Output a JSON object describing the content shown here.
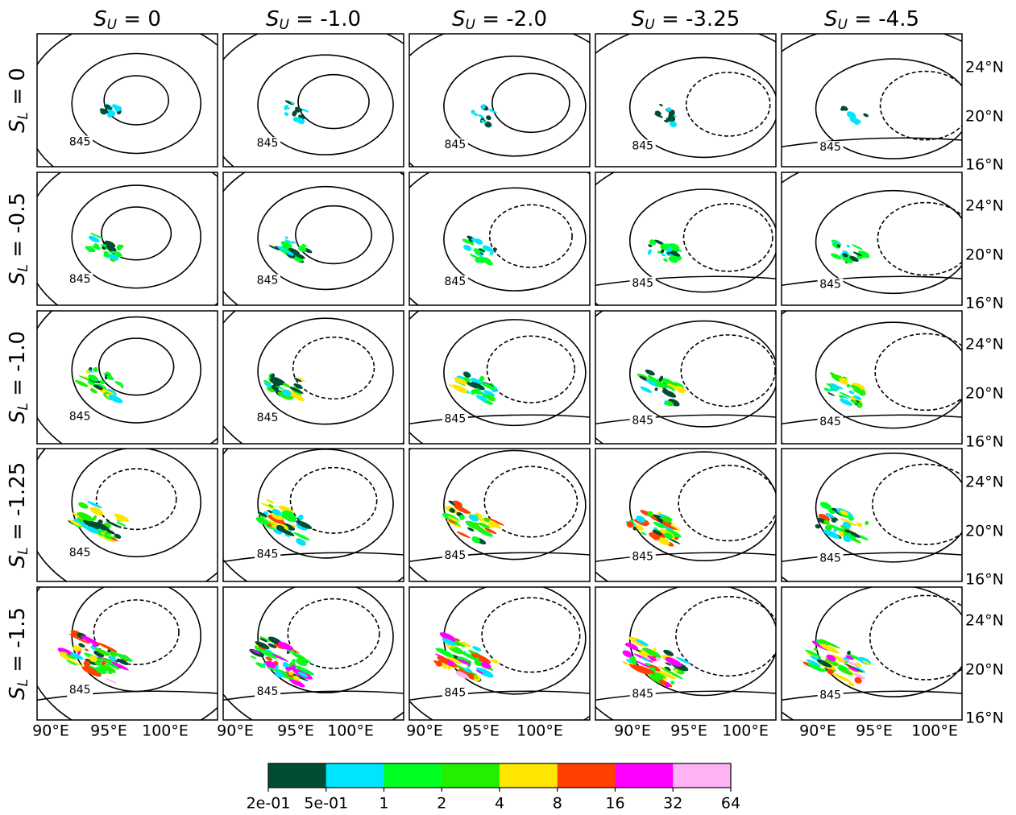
{
  "columns": [
    {
      "var": "S",
      "sub": "U",
      "text": " = 0"
    },
    {
      "var": "S",
      "sub": "U",
      "text": " = -1.0"
    },
    {
      "var": "S",
      "sub": "U",
      "text": " = -2.0"
    },
    {
      "var": "S",
      "sub": "U",
      "text": " = -3.25"
    },
    {
      "var": "S",
      "sub": "U",
      "text": " = -4.5"
    }
  ],
  "rows": [
    {
      "var": "S",
      "sub": "L",
      "text": " = 0"
    },
    {
      "var": "S",
      "sub": "L",
      "text": " = -0.5"
    },
    {
      "var": "S",
      "sub": "L",
      "text": " = -1.0"
    },
    {
      "var": "S",
      "sub": "L",
      "text": " = -1.25"
    },
    {
      "var": "S",
      "sub": "L",
      "text": " = -1.5"
    }
  ],
  "x_tick_labels": [
    "90°E",
    "95°E",
    "100°E"
  ],
  "y_tick_labels": [
    "24°N",
    "20°N",
    "16°N"
  ],
  "contour_label": "845",
  "colorbar": {
    "colors": [
      "#004d33",
      "#00e5ff",
      "#00ff22",
      "#22f000",
      "#ffe600",
      "#ff4000",
      "#ff00ff",
      "#ffb3f5"
    ],
    "ticks": [
      {
        "value": 0.2,
        "label": "2e-01"
      },
      {
        "value": 0.5,
        "label": "5e-01"
      },
      1,
      2,
      4,
      8,
      16,
      32,
      64
    ]
  }
}
